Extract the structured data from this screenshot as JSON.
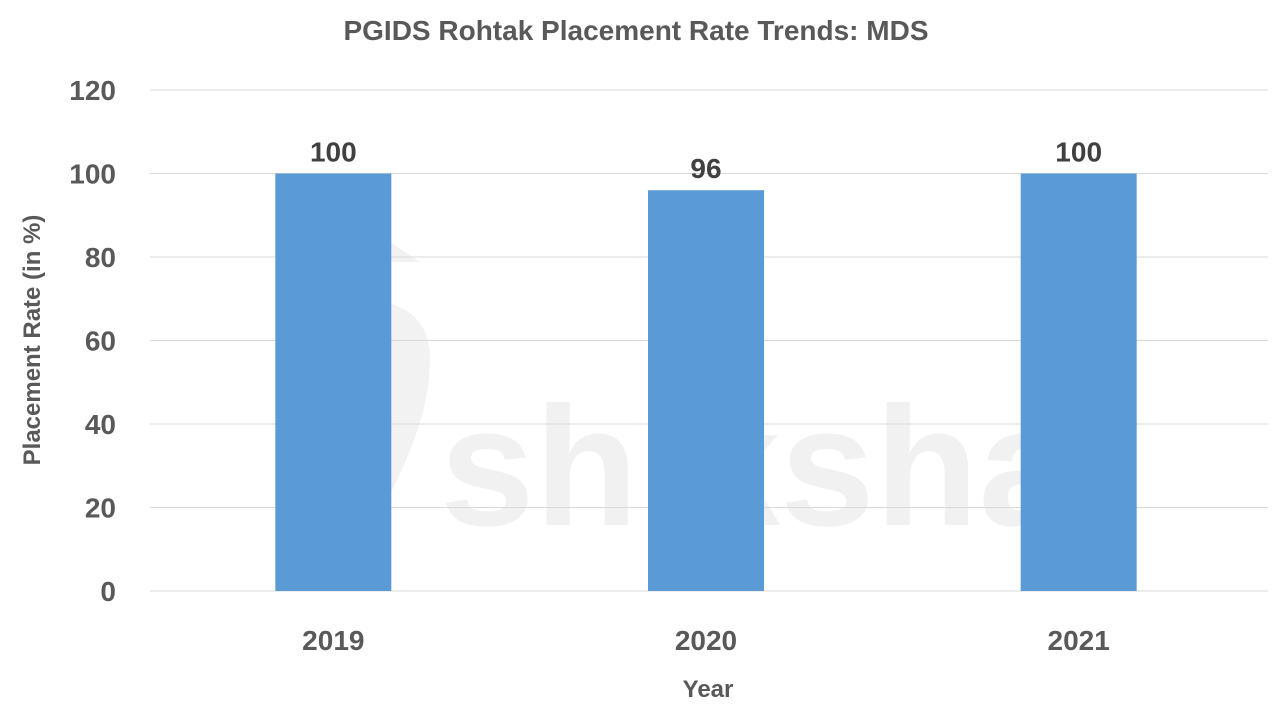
{
  "chart_data": {
    "type": "bar",
    "title": "PGIDS Rohtak Placement Rate Trends: MDS",
    "xlabel": "Year",
    "ylabel": "Placement Rate (in %)",
    "categories": [
      "2019",
      "2020",
      "2021"
    ],
    "values": [
      100,
      96,
      100
    ],
    "data_labels": [
      "100",
      "96",
      "100"
    ],
    "ylim": [
      0,
      120
    ],
    "yticks": [
      0,
      20,
      40,
      60,
      80,
      100,
      120
    ],
    "grid": true,
    "legend": "none",
    "bar_color": "#5B9BD5"
  },
  "watermark": "shiksha"
}
